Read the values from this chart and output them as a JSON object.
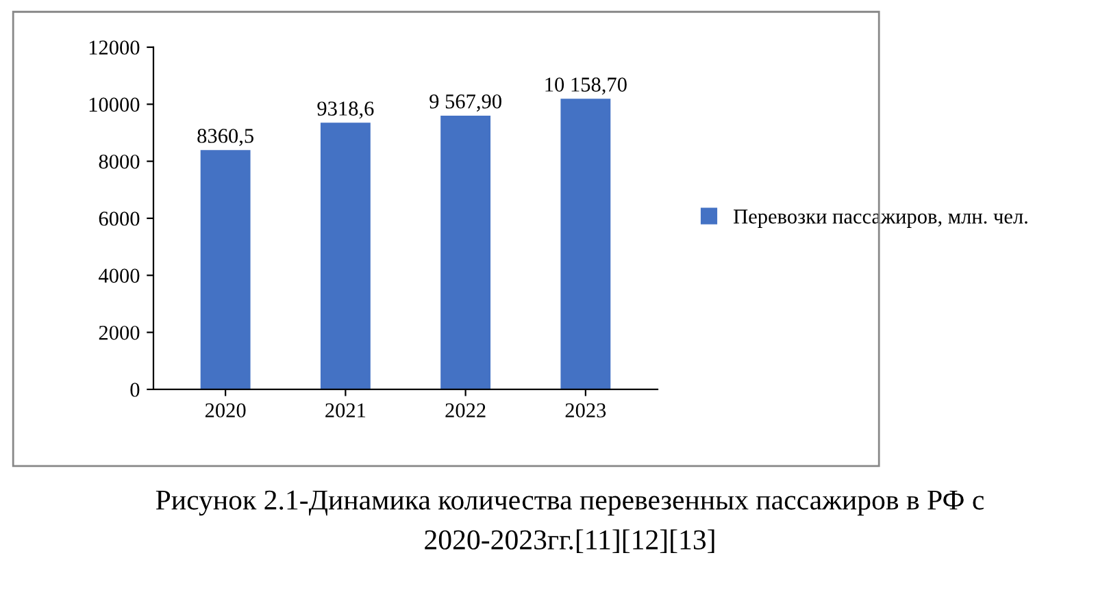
{
  "chart_data": {
    "type": "bar",
    "categories": [
      "2020",
      "2021",
      "2022",
      "2023"
    ],
    "series": [
      {
        "name": "Перевозки пассажиров, млн. чел.",
        "color": "#4472c4",
        "values": [
          8360.5,
          9318.6,
          9567.9,
          10158.7
        ],
        "value_labels": [
          "8360,5",
          "9318,6",
          "9 567,90",
          "10 158,70"
        ]
      }
    ],
    "ylim": [
      0,
      12000
    ],
    "yticks": [
      0,
      2000,
      4000,
      6000,
      8000,
      10000,
      12000
    ],
    "grid": false,
    "legend": "right",
    "annotations": [
      "Рисунок 2.1-Динамика количества перевезенных пассажиров в РФ с 2020-2023гг.[11][12][13]"
    ]
  }
}
